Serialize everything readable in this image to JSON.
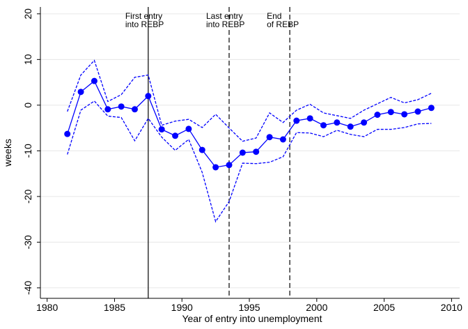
{
  "chart_data": {
    "type": "line",
    "xlabel": "Year of entry into unemployment",
    "ylabel": "weeks",
    "x": [
      1981.5,
      1982.5,
      1983.5,
      1984.5,
      1985.5,
      1986.5,
      1987.5,
      1988.5,
      1989.5,
      1990.5,
      1991.5,
      1992.5,
      1993.5,
      1994.5,
      1995.5,
      1996.5,
      1997.5,
      1998.5,
      1999.5,
      2000.5,
      2001.5,
      2002.5,
      2003.5,
      2004.5,
      2005.5,
      2006.5,
      2007.5,
      2008.5
    ],
    "series": [
      {
        "color": "#0000ff",
        "style": "solid",
        "markers": true,
        "values": [
          -6.3,
          2.9,
          5.3,
          -0.9,
          -0.3,
          -0.9,
          2.0,
          -5.3,
          -6.7,
          -5.2,
          -9.8,
          -13.6,
          -13.1,
          -10.4,
          -10.2,
          -7.0,
          -7.5,
          -3.4,
          -2.9,
          -4.4,
          -3.8,
          -4.7,
          -3.8,
          -2.1,
          -1.5,
          -2.0,
          -1.4,
          -0.6
        ]
      },
      {
        "color": "#0000ff",
        "style": "dashed",
        "markers": false,
        "values": [
          -1.4,
          6.6,
          9.8,
          0.8,
          2.3,
          6.1,
          6.6,
          -4.4,
          -3.5,
          -3.1,
          -4.9,
          -2.0,
          -5.0,
          -7.9,
          -7.2,
          -1.7,
          -3.8,
          -1.1,
          0.2,
          -1.7,
          -2.3,
          -2.9,
          -1.1,
          0.3,
          1.7,
          0.5,
          1.2,
          2.6
        ]
      },
      {
        "color": "#0000ff",
        "style": "dashed",
        "markers": false,
        "values": [
          -10.8,
          -1.1,
          0.9,
          -2.4,
          -2.7,
          -7.8,
          -2.9,
          -7.0,
          -9.9,
          -7.5,
          -14.7,
          -25.5,
          -21.1,
          -12.7,
          -12.8,
          -12.5,
          -11.3,
          -6.0,
          -6.1,
          -6.9,
          -5.5,
          -6.4,
          -6.9,
          -5.3,
          -5.3,
          -4.9,
          -4.1,
          -4.0
        ]
      }
    ],
    "vlines": [
      {
        "x": 1987.5,
        "style": "solid",
        "label": [
          "First entry",
          "into REBP"
        ]
      },
      {
        "x": 1993.5,
        "style": "dashed",
        "label": [
          "Last entry",
          "into REBP"
        ]
      },
      {
        "x": 1998,
        "style": "dashed",
        "label": [
          "End",
          "of REBP"
        ]
      }
    ],
    "xlim": [
      1979.5,
      2010.6
    ],
    "ylim": [
      -42.3,
      21.5
    ],
    "xticks": [
      1980,
      1985,
      1990,
      1995,
      2000,
      2005,
      2010
    ],
    "yticks": [
      -40,
      -30,
      -20,
      -10,
      0,
      10,
      20
    ],
    "grid": true
  }
}
